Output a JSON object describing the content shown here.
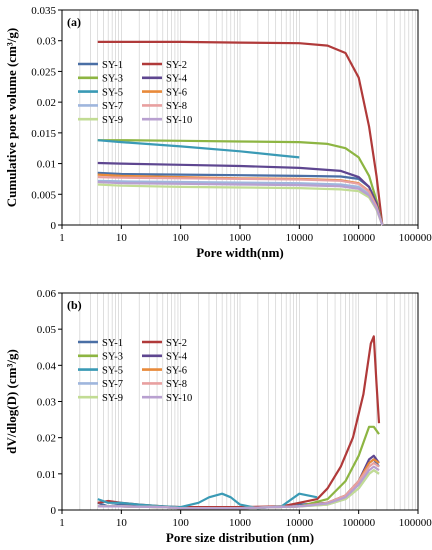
{
  "chart_data": [
    {
      "type": "line",
      "panel_label": "(a)",
      "xlabel": "Pore width(nm)",
      "ylabel": "Cumulative pore volume (cm³/g)",
      "x_scale": "log",
      "xlim": [
        1,
        1000000
      ],
      "ylim": [
        0,
        0.035
      ],
      "x_ticks": [
        "1",
        "10",
        "100",
        "1000",
        "10000",
        "100000",
        "1000000"
      ],
      "y_ticks": [
        "0",
        "0.005",
        "0.01",
        "0.015",
        "0.02",
        "0.025",
        "0.03",
        "0.035"
      ],
      "grid": "vertical log gridlines",
      "legend_placement": "left",
      "series": [
        {
          "name": "SY-1",
          "color": "#4a6fa5",
          "x": [
            4,
            10,
            100,
            1000,
            10000,
            50000,
            100000,
            150000,
            200000,
            250000
          ],
          "y": [
            0.0085,
            0.0083,
            0.0082,
            0.0081,
            0.008,
            0.0079,
            0.0075,
            0.0062,
            0.0035,
            0.0
          ]
        },
        {
          "name": "SY-2",
          "color": "#b03a3a",
          "x": [
            4,
            100,
            1000,
            10000,
            30000,
            60000,
            100000,
            150000,
            200000,
            250000
          ],
          "y": [
            0.0298,
            0.0298,
            0.0297,
            0.0296,
            0.0292,
            0.028,
            0.024,
            0.016,
            0.008,
            0.0
          ]
        },
        {
          "name": "SY-3",
          "color": "#8db542",
          "x": [
            4,
            10,
            100,
            1000,
            10000,
            30000,
            60000,
            100000,
            150000,
            200000,
            250000
          ],
          "y": [
            0.0138,
            0.0138,
            0.0137,
            0.0136,
            0.0135,
            0.0132,
            0.0125,
            0.011,
            0.008,
            0.004,
            0.0
          ]
        },
        {
          "name": "SY-4",
          "color": "#5e4690",
          "x": [
            4,
            10,
            100,
            1000,
            10000,
            50000,
            100000,
            150000,
            200000,
            250000
          ],
          "y": [
            0.0101,
            0.01,
            0.0098,
            0.0096,
            0.0093,
            0.0088,
            0.0078,
            0.0062,
            0.0035,
            0.0
          ]
        },
        {
          "name": "SY-5",
          "color": "#3a9ab5",
          "x": [
            4,
            10,
            100,
            1000,
            5000,
            10000
          ],
          "y": [
            0.0138,
            0.0135,
            0.0128,
            0.012,
            0.0113,
            0.011
          ]
        },
        {
          "name": "SY-6",
          "color": "#e88a3a",
          "x": [
            4,
            10,
            100,
            1000,
            10000,
            50000,
            100000,
            150000,
            200000,
            250000
          ],
          "y": [
            0.0082,
            0.008,
            0.0078,
            0.0076,
            0.0075,
            0.0073,
            0.0068,
            0.0055,
            0.003,
            0.0
          ]
        },
        {
          "name": "SY-7",
          "color": "#9fb6dd",
          "x": [
            4,
            10,
            100,
            1000,
            10000,
            50000,
            100000,
            150000,
            200000,
            250000
          ],
          "y": [
            0.0072,
            0.0071,
            0.007,
            0.0069,
            0.0068,
            0.0066,
            0.0062,
            0.005,
            0.0028,
            0.0
          ]
        },
        {
          "name": "SY-8",
          "color": "#e8a0a0",
          "x": [
            4,
            10,
            100,
            1000,
            10000,
            50000,
            100000,
            150000,
            200000,
            250000
          ],
          "y": [
            0.0078,
            0.0077,
            0.0076,
            0.0075,
            0.0074,
            0.0072,
            0.0067,
            0.0054,
            0.003,
            0.0
          ]
        },
        {
          "name": "SY-9",
          "color": "#c2dc94",
          "x": [
            4,
            10,
            100,
            1000,
            10000,
            50000,
            100000,
            150000,
            200000,
            250000
          ],
          "y": [
            0.0066,
            0.0064,
            0.0062,
            0.0061,
            0.006,
            0.0058,
            0.0055,
            0.0045,
            0.0025,
            0.0
          ]
        },
        {
          "name": "SY-10",
          "color": "#b8a0d0",
          "x": [
            4,
            10,
            100,
            1000,
            10000,
            50000,
            100000,
            150000,
            200000,
            250000
          ],
          "y": [
            0.007,
            0.0068,
            0.0067,
            0.0066,
            0.0065,
            0.0063,
            0.0059,
            0.0048,
            0.0027,
            0.0
          ]
        }
      ]
    },
    {
      "type": "line",
      "panel_label": "(b)",
      "xlabel": "Pore size distribution (nm)",
      "ylabel": "dV/dlog(D) (cm³/g)",
      "x_scale": "log",
      "xlim": [
        1,
        1000000
      ],
      "ylim": [
        0,
        0.06
      ],
      "x_ticks": [
        "1",
        "10",
        "100",
        "1000",
        "10000",
        "100000",
        "1000000"
      ],
      "y_ticks": [
        "0",
        "0.01",
        "0.02",
        "0.03",
        "0.04",
        "0.05",
        "0.06"
      ],
      "grid": "vertical log gridlines",
      "legend_placement": "left",
      "series": [
        {
          "name": "SY-1",
          "color": "#4a6fa5",
          "x": [
            4,
            6,
            10,
            20,
            50,
            100,
            1000,
            5000,
            10000,
            30000,
            60000,
            100000,
            150000,
            180000,
            220000
          ],
          "y": [
            0.002,
            0.001,
            0.0015,
            0.001,
            0.001,
            0.0005,
            0.0005,
            0.001,
            0.0015,
            0.002,
            0.004,
            0.008,
            0.013,
            0.014,
            0.012
          ]
        },
        {
          "name": "SY-2",
          "color": "#b03a3a",
          "x": [
            4,
            6,
            10,
            20,
            50,
            100,
            1000,
            5000,
            10000,
            20000,
            30000,
            50000,
            80000,
            120000,
            160000,
            180000,
            200000,
            220000
          ],
          "y": [
            0.002,
            0.0025,
            0.002,
            0.0015,
            0.001,
            0.0008,
            0.0008,
            0.001,
            0.002,
            0.003,
            0.006,
            0.012,
            0.02,
            0.032,
            0.046,
            0.048,
            0.035,
            0.024
          ]
        },
        {
          "name": "SY-3",
          "color": "#8db542",
          "x": [
            4,
            10,
            50,
            100,
            1000,
            10000,
            30000,
            60000,
            100000,
            150000,
            180000,
            220000
          ],
          "y": [
            0.001,
            0.001,
            0.0008,
            0.0005,
            0.0005,
            0.001,
            0.003,
            0.008,
            0.015,
            0.023,
            0.023,
            0.021
          ]
        },
        {
          "name": "SY-4",
          "color": "#5e4690",
          "x": [
            4,
            10,
            50,
            100,
            1000,
            10000,
            30000,
            60000,
            100000,
            150000,
            180000,
            220000
          ],
          "y": [
            0.001,
            0.001,
            0.0008,
            0.0005,
            0.0005,
            0.001,
            0.002,
            0.004,
            0.008,
            0.014,
            0.015,
            0.013
          ]
        },
        {
          "name": "SY-5",
          "color": "#3a9ab5",
          "x": [
            4,
            6,
            10,
            20,
            50,
            100,
            200,
            300,
            500,
            700,
            1000,
            2000,
            5000,
            10000,
            20000
          ],
          "y": [
            0.003,
            0.002,
            0.002,
            0.0015,
            0.001,
            0.0008,
            0.002,
            0.0035,
            0.0045,
            0.0035,
            0.0015,
            0.0005,
            0.001,
            0.0045,
            0.0035
          ]
        },
        {
          "name": "SY-6",
          "color": "#e88a3a",
          "x": [
            4,
            10,
            50,
            100,
            1000,
            10000,
            30000,
            60000,
            100000,
            150000,
            180000,
            220000
          ],
          "y": [
            0.001,
            0.001,
            0.0008,
            0.0005,
            0.0005,
            0.001,
            0.002,
            0.004,
            0.008,
            0.013,
            0.014,
            0.013
          ]
        },
        {
          "name": "SY-7",
          "color": "#9fb6dd",
          "x": [
            4,
            10,
            50,
            100,
            1000,
            10000,
            30000,
            60000,
            100000,
            150000,
            180000,
            220000
          ],
          "y": [
            0.001,
            0.001,
            0.0008,
            0.0005,
            0.0005,
            0.001,
            0.0015,
            0.003,
            0.006,
            0.01,
            0.011,
            0.01
          ]
        },
        {
          "name": "SY-8",
          "color": "#e8a0a0",
          "x": [
            4,
            10,
            50,
            100,
            1000,
            10000,
            30000,
            60000,
            100000,
            150000,
            180000,
            220000
          ],
          "y": [
            0.001,
            0.001,
            0.0008,
            0.0005,
            0.0005,
            0.001,
            0.002,
            0.004,
            0.008,
            0.012,
            0.013,
            0.012
          ]
        },
        {
          "name": "SY-9",
          "color": "#c2dc94",
          "x": [
            4,
            10,
            50,
            100,
            1000,
            10000,
            30000,
            60000,
            100000,
            150000,
            180000,
            220000
          ],
          "y": [
            0.001,
            0.001,
            0.0008,
            0.0005,
            0.0005,
            0.001,
            0.0015,
            0.003,
            0.006,
            0.01,
            0.011,
            0.01
          ]
        },
        {
          "name": "SY-10",
          "color": "#b8a0d0",
          "x": [
            4,
            10,
            50,
            100,
            1000,
            10000,
            30000,
            60000,
            100000,
            150000,
            180000,
            220000
          ],
          "y": [
            0.001,
            0.001,
            0.0008,
            0.0005,
            0.0005,
            0.001,
            0.0018,
            0.0035,
            0.007,
            0.011,
            0.012,
            0.011
          ]
        }
      ]
    }
  ]
}
